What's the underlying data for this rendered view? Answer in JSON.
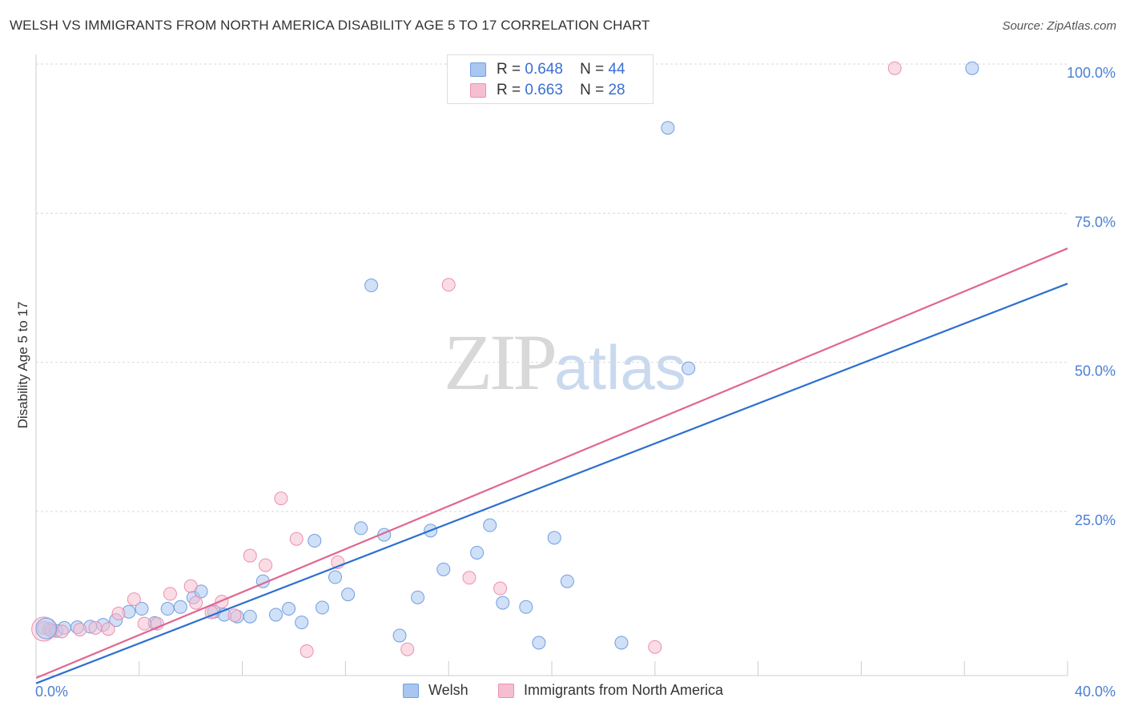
{
  "header": {
    "title": "WELSH VS IMMIGRANTS FROM NORTH AMERICA DISABILITY AGE 5 TO 17 CORRELATION CHART",
    "source": "Source: ZipAtlas.com"
  },
  "watermark": {
    "zip": "ZIP",
    "atlas": "atlas"
  },
  "legend": {
    "rows": [
      {
        "r_label": "R =",
        "r_value": "0.648",
        "n_label": "N =",
        "n_value": "44",
        "color": "#a9c6f0",
        "border": "#6f9fe0"
      },
      {
        "r_label": "R =",
        "r_value": "0.663",
        "n_label": "N =",
        "n_value": "28",
        "color": "#f6bfd0",
        "border": "#ec8fb0"
      }
    ]
  },
  "bottom_legend": [
    {
      "label": "Welsh",
      "color": "#a9c6f0",
      "border": "#6f9fe0"
    },
    {
      "label": "Immigrants from North America",
      "color": "#f6bfd0",
      "border": "#ec8fb0"
    }
  ],
  "chart_data": {
    "type": "scatter",
    "title": "WELSH VS IMMIGRANTS FROM NORTH AMERICA DISABILITY AGE 5 TO 17 CORRELATION CHART",
    "ylabel": "Disability Age 5 to 17",
    "xlabel": "",
    "xlim": [
      0,
      40
    ],
    "ylim": [
      -2.5,
      100
    ],
    "x_tick_labels": [
      "0.0%",
      "40.0%"
    ],
    "y_ticks": [
      25,
      50,
      75,
      100
    ],
    "y_tick_labels": [
      "25.0%",
      "50.0%",
      "75.0%",
      "100.0%"
    ],
    "grid": true,
    "legend_position": "top-center",
    "series": [
      {
        "name": "Welsh",
        "color": "#6f9fe0",
        "fill": "#a9c6f0",
        "trend": {
          "x": [
            0.0,
            40.0
          ],
          "y": [
            -3.8,
            63.2
          ]
        },
        "trend_color": "#2e6fd0",
        "points": [
          [
            0.5,
            5.3
          ],
          [
            0.8,
            5.0
          ],
          [
            1.1,
            5.5
          ],
          [
            1.6,
            5.6
          ],
          [
            2.1,
            5.7
          ],
          [
            2.6,
            6.0
          ],
          [
            3.1,
            6.8
          ],
          [
            3.6,
            8.2
          ],
          [
            4.1,
            8.7
          ],
          [
            4.6,
            6.3
          ],
          [
            5.1,
            8.7
          ],
          [
            5.6,
            9.0
          ],
          [
            6.1,
            10.6
          ],
          [
            6.4,
            11.6
          ],
          [
            6.9,
            8.2
          ],
          [
            7.3,
            7.7
          ],
          [
            7.8,
            7.4
          ],
          [
            8.3,
            7.4
          ],
          [
            8.8,
            13.3
          ],
          [
            9.3,
            7.7
          ],
          [
            9.8,
            8.7
          ],
          [
            10.3,
            6.4
          ],
          [
            10.8,
            20.1
          ],
          [
            11.1,
            8.9
          ],
          [
            11.6,
            14.0
          ],
          [
            12.1,
            11.1
          ],
          [
            12.6,
            22.2
          ],
          [
            13.0,
            62.9
          ],
          [
            13.5,
            21.1
          ],
          [
            14.1,
            4.2
          ],
          [
            14.8,
            10.6
          ],
          [
            15.3,
            21.8
          ],
          [
            15.8,
            15.3
          ],
          [
            17.1,
            18.1
          ],
          [
            17.6,
            22.7
          ],
          [
            18.1,
            9.7
          ],
          [
            19.0,
            9.0
          ],
          [
            19.5,
            3.0
          ],
          [
            20.1,
            20.6
          ],
          [
            20.6,
            13.3
          ],
          [
            22.7,
            3.0
          ],
          [
            24.5,
            89.3
          ],
          [
            25.3,
            49.0
          ],
          [
            36.3,
            99.3
          ]
        ]
      },
      {
        "name": "Immigrants from North America",
        "color": "#ec8fb0",
        "fill": "#f6bfd0",
        "trend": {
          "x": [
            0.0,
            40.0
          ],
          "y": [
            -2.9,
            69.1
          ]
        },
        "trend_color": "#e0668f",
        "points": [
          [
            0.3,
            5.5
          ],
          [
            0.6,
            5.0
          ],
          [
            1.0,
            4.9
          ],
          [
            1.7,
            5.2
          ],
          [
            2.3,
            5.5
          ],
          [
            2.8,
            5.3
          ],
          [
            3.2,
            7.9
          ],
          [
            3.8,
            10.3
          ],
          [
            4.2,
            6.2
          ],
          [
            4.7,
            6.2
          ],
          [
            5.2,
            11.2
          ],
          [
            6.0,
            12.5
          ],
          [
            6.2,
            9.7
          ],
          [
            6.8,
            8.1
          ],
          [
            7.2,
            9.9
          ],
          [
            7.7,
            7.6
          ],
          [
            8.3,
            17.6
          ],
          [
            8.9,
            16.0
          ],
          [
            9.5,
            27.2
          ],
          [
            10.1,
            20.4
          ],
          [
            10.5,
            1.6
          ],
          [
            11.7,
            16.5
          ],
          [
            14.4,
            1.9
          ],
          [
            16.0,
            63.0
          ],
          [
            16.8,
            13.9
          ],
          [
            18.0,
            12.1
          ],
          [
            24.0,
            2.3
          ],
          [
            33.3,
            99.3
          ]
        ]
      }
    ]
  }
}
